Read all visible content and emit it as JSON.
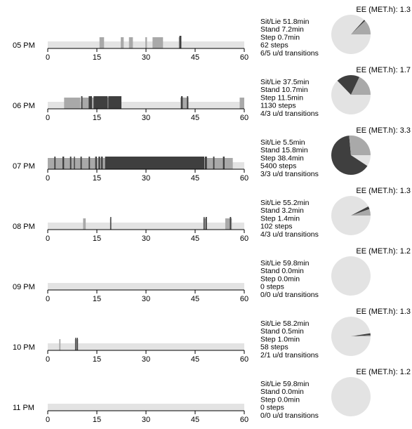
{
  "colors": {
    "background": "#ffffff",
    "lying_band": "#e3e3e3",
    "standing": "#a9a9a9",
    "stepping": "#3f3f3f",
    "pie_sit": "#e3e3e3",
    "pie_stand": "#a9a9a9",
    "pie_step": "#3f3f3f",
    "axis": "#000000"
  },
  "chart_data": [
    {
      "type": "bar",
      "hour": "05 PM",
      "x_ticks": [
        "0",
        "15",
        "30",
        "45",
        "60"
      ],
      "xlim": [
        0,
        60
      ],
      "stats": [
        "Sit/Lie 51.8min",
        "Stand  7.2min",
        "Step    0.7min",
        "62 steps",
        "6/5 u/d transitions"
      ],
      "ee_label": "EE (MET.h): 1.3",
      "pie": {
        "sit": 51.8,
        "stand": 7.2,
        "step": 0.7
      },
      "stand_segments": [
        [
          15.8,
          17.2
        ],
        [
          22.3,
          23.2
        ],
        [
          24.8,
          26.0
        ],
        [
          29.8,
          30.3
        ],
        [
          32.0,
          35.2
        ],
        [
          40.0,
          40.7
        ]
      ],
      "step_segments": [
        [
          40.2,
          40.8
        ]
      ]
    },
    {
      "type": "bar",
      "hour": "06 PM",
      "x_ticks": [
        "0",
        "15",
        "30",
        "45",
        "60"
      ],
      "xlim": [
        0,
        60
      ],
      "stats": [
        "Sit/Lie 37.5min",
        "Stand  10.7min",
        "Step    11.5min",
        "1130 steps",
        "4/3 u/d transitions"
      ],
      "ee_label": "EE (MET.h): 1.7",
      "pie": {
        "sit": 37.5,
        "stand": 10.7,
        "step": 11.5
      },
      "stand_segments": [
        [
          5.0,
          10.0
        ],
        [
          10.5,
          22.5
        ],
        [
          40.5,
          43.0
        ],
        [
          58.6,
          60.0
        ]
      ],
      "step_segments": [
        [
          10.2,
          10.6
        ],
        [
          12.5,
          13.5
        ],
        [
          14.0,
          18.3
        ],
        [
          18.5,
          22.5
        ],
        [
          40.7,
          41.2
        ],
        [
          42.5,
          42.9
        ]
      ]
    },
    {
      "type": "bar",
      "hour": "07 PM",
      "x_ticks": [
        "0",
        "15",
        "30",
        "45",
        "60"
      ],
      "xlim": [
        0,
        60
      ],
      "stats": [
        "Sit/Lie 5.5min",
        "Stand  15.8min",
        "Step    38.4min",
        "5400 steps",
        "3/3 u/d transitions"
      ],
      "ee_label": "EE (MET.h): 3.3",
      "pie": {
        "sit": 5.5,
        "stand": 15.8,
        "step": 38.4
      },
      "stand_segments": [
        [
          0.0,
          17.5
        ],
        [
          17.5,
          48.0
        ],
        [
          48.0,
          56.5
        ]
      ],
      "step_segments": [
        [
          2.0,
          2.4
        ],
        [
          4.5,
          5.0
        ],
        [
          6.8,
          7.2
        ],
        [
          8.0,
          8.3
        ],
        [
          10.0,
          10.4
        ],
        [
          12.5,
          12.9
        ],
        [
          14.5,
          15.0
        ],
        [
          15.5,
          16.0
        ],
        [
          16.3,
          16.8
        ],
        [
          17.5,
          47.8
        ],
        [
          48.0,
          48.6
        ],
        [
          50.5,
          50.9
        ],
        [
          53.5,
          54.0
        ]
      ]
    },
    {
      "type": "bar",
      "hour": "08 PM",
      "x_ticks": [
        "0",
        "15",
        "30",
        "45",
        "60"
      ],
      "xlim": [
        0,
        60
      ],
      "stats": [
        "Sit/Lie 55.2min",
        "Stand  3.2min",
        "Step    1.4min",
        "102 steps",
        "4/3 u/d transitions"
      ],
      "ee_label": "EE (MET.h): 1.3",
      "pie": {
        "sit": 55.2,
        "stand": 3.2,
        "step": 1.4
      },
      "stand_segments": [
        [
          10.8,
          11.6
        ],
        [
          19.0,
          19.4
        ],
        [
          47.5,
          48.5
        ],
        [
          54.2,
          56.2
        ]
      ],
      "step_segments": [
        [
          19.1,
          19.4
        ],
        [
          47.6,
          47.9
        ],
        [
          48.2,
          48.6
        ],
        [
          55.6,
          56.0
        ]
      ]
    },
    {
      "type": "bar",
      "hour": "09 PM",
      "x_ticks": [
        "0",
        "15",
        "30",
        "45",
        "60"
      ],
      "xlim": [
        0,
        60
      ],
      "stats": [
        "Sit/Lie 59.8min",
        "Stand  0.0min",
        "Step    0.0min",
        "0 steps",
        "0/0 u/d transitions"
      ],
      "ee_label": "EE (MET.h): 1.2",
      "pie": {
        "sit": 59.8,
        "stand": 0.0,
        "step": 0.0
      },
      "stand_segments": [],
      "step_segments": []
    },
    {
      "type": "bar",
      "hour": "10 PM",
      "x_ticks": [
        "0",
        "15",
        "30",
        "45",
        "60"
      ],
      "xlim": [
        0,
        60
      ],
      "stats": [
        "Sit/Lie 58.2min",
        "Stand  0.5min",
        "Step    1.0min",
        "58 steps",
        "2/1 u/d transitions"
      ],
      "ee_label": "EE (MET.h): 1.3",
      "pie": {
        "sit": 58.2,
        "stand": 0.5,
        "step": 1.0
      },
      "stand_segments": [
        [
          3.5,
          3.9
        ],
        [
          8.3,
          9.3
        ]
      ],
      "step_segments": [
        [
          8.4,
          8.7
        ],
        [
          8.9,
          9.2
        ]
      ]
    },
    {
      "type": "bar",
      "hour": "11 PM",
      "x_ticks": [
        "0",
        "15",
        "30",
        "45",
        "60"
      ],
      "xlim": [
        0,
        60
      ],
      "stats": [
        "Sit/Lie 59.8min",
        "Stand  0.0min",
        "Step    0.0min",
        "0 steps",
        "0/0 u/d transitions"
      ],
      "ee_label": "EE (MET.h): 1.2",
      "pie": {
        "sit": 59.8,
        "stand": 0.0,
        "step": 0.0
      },
      "stand_segments": [],
      "step_segments": []
    }
  ]
}
